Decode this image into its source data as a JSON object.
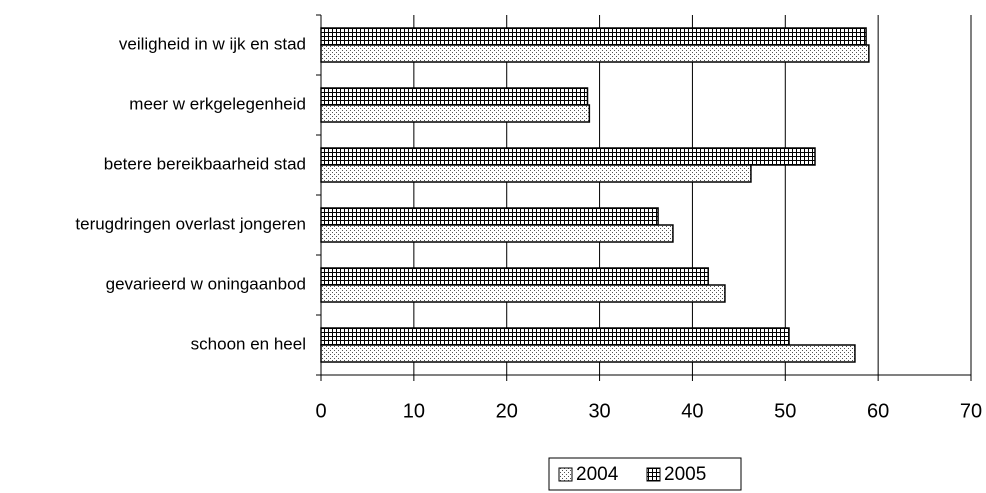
{
  "chart_data": {
    "type": "hbar",
    "categories": [
      "veiligheid in w ijk en stad",
      "meer w erkgelegenheid",
      "betere bereikbaarheid stad",
      "terugdringen overlast jongeren",
      "gevarieerd w oningaanbod",
      "schoon en heel"
    ],
    "series": [
      {
        "name": "2004",
        "values": [
          59.0,
          28.9,
          46.3,
          37.9,
          43.5,
          57.5
        ]
      },
      {
        "name": "2005",
        "values": [
          58.7,
          28.7,
          53.2,
          36.3,
          41.7,
          50.4
        ]
      }
    ],
    "xlim": [
      0,
      70
    ],
    "xticks": [
      0,
      10,
      20,
      30,
      40,
      50,
      60,
      70
    ],
    "grid": true,
    "legend": "bottom"
  }
}
